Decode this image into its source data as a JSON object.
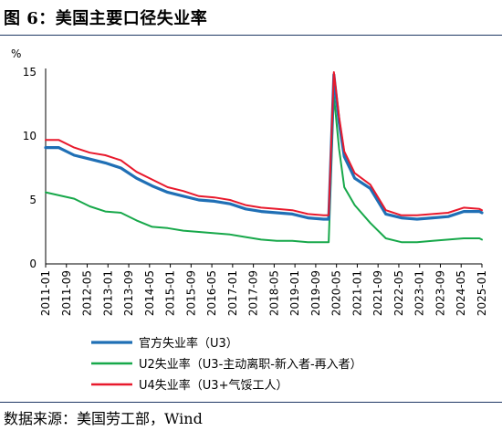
{
  "title": "图 6：美国主要口径失业率",
  "source": "数据来源：美国劳工部，Wind",
  "chart_data": {
    "type": "line",
    "ylabel": "%",
    "ylim": [
      0,
      15
    ],
    "yticks": [
      0,
      5,
      10,
      15
    ],
    "grid": false,
    "legend_position": "bottom",
    "xticks": [
      "2011-01",
      "2011-09",
      "2012-05",
      "2013-01",
      "2013-09",
      "2014-05",
      "2015-01",
      "2015-09",
      "2016-05",
      "2017-01",
      "2017-09",
      "2018-05",
      "2019-01",
      "2019-09",
      "2020-05",
      "2021-01",
      "2021-09",
      "2022-05",
      "2023-01",
      "2023-09",
      "2024-05",
      "2025-01"
    ],
    "xrange": [
      "2011-01",
      "2025-01"
    ],
    "series": [
      {
        "name": "官方失业率（U3）",
        "color": "#1f6fb5",
        "width": 3.2,
        "points": [
          [
            "2011-01",
            9.1
          ],
          [
            "2011-06",
            9.1
          ],
          [
            "2011-12",
            8.5
          ],
          [
            "2012-06",
            8.2
          ],
          [
            "2012-12",
            7.9
          ],
          [
            "2013-06",
            7.5
          ],
          [
            "2013-12",
            6.7
          ],
          [
            "2014-06",
            6.1
          ],
          [
            "2014-12",
            5.6
          ],
          [
            "2015-06",
            5.3
          ],
          [
            "2015-12",
            5.0
          ],
          [
            "2016-06",
            4.9
          ],
          [
            "2016-12",
            4.7
          ],
          [
            "2017-06",
            4.3
          ],
          [
            "2017-12",
            4.1
          ],
          [
            "2018-06",
            4.0
          ],
          [
            "2018-12",
            3.9
          ],
          [
            "2019-06",
            3.6
          ],
          [
            "2019-12",
            3.5
          ],
          [
            "2020-02",
            3.5
          ],
          [
            "2020-04",
            14.8
          ],
          [
            "2020-06",
            11.1
          ],
          [
            "2020-08",
            8.4
          ],
          [
            "2020-12",
            6.7
          ],
          [
            "2021-06",
            5.9
          ],
          [
            "2021-12",
            3.9
          ],
          [
            "2022-06",
            3.6
          ],
          [
            "2022-12",
            3.5
          ],
          [
            "2023-06",
            3.6
          ],
          [
            "2023-12",
            3.7
          ],
          [
            "2024-06",
            4.1
          ],
          [
            "2024-12",
            4.1
          ],
          [
            "2025-01",
            4.0
          ]
        ]
      },
      {
        "name": "U2失业率（U3-主动离职-新入者-再入者）",
        "color": "#17a84a",
        "width": 2,
        "points": [
          [
            "2011-01",
            5.6
          ],
          [
            "2011-12",
            5.1
          ],
          [
            "2012-06",
            4.5
          ],
          [
            "2012-12",
            4.1
          ],
          [
            "2013-06",
            4.0
          ],
          [
            "2013-12",
            3.4
          ],
          [
            "2014-06",
            2.9
          ],
          [
            "2014-12",
            2.8
          ],
          [
            "2015-06",
            2.6
          ],
          [
            "2015-12",
            2.5
          ],
          [
            "2016-06",
            2.4
          ],
          [
            "2016-12",
            2.3
          ],
          [
            "2017-06",
            2.1
          ],
          [
            "2017-12",
            1.9
          ],
          [
            "2018-06",
            1.8
          ],
          [
            "2018-12",
            1.8
          ],
          [
            "2019-06",
            1.7
          ],
          [
            "2019-12",
            1.7
          ],
          [
            "2020-02",
            1.7
          ],
          [
            "2020-04",
            13.2
          ],
          [
            "2020-06",
            9.0
          ],
          [
            "2020-08",
            6.0
          ],
          [
            "2020-12",
            4.6
          ],
          [
            "2021-06",
            3.2
          ],
          [
            "2021-12",
            2.0
          ],
          [
            "2022-06",
            1.7
          ],
          [
            "2022-12",
            1.7
          ],
          [
            "2023-06",
            1.8
          ],
          [
            "2023-12",
            1.9
          ],
          [
            "2024-06",
            2.0
          ],
          [
            "2024-12",
            2.0
          ],
          [
            "2025-01",
            1.9
          ]
        ]
      },
      {
        "name": "U4失业率（U3+气馁工人）",
        "color": "#e8192c",
        "width": 2,
        "points": [
          [
            "2011-01",
            9.7
          ],
          [
            "2011-06",
            9.7
          ],
          [
            "2011-12",
            9.1
          ],
          [
            "2012-06",
            8.7
          ],
          [
            "2012-12",
            8.5
          ],
          [
            "2013-06",
            8.1
          ],
          [
            "2013-12",
            7.2
          ],
          [
            "2014-06",
            6.6
          ],
          [
            "2014-12",
            6.0
          ],
          [
            "2015-06",
            5.7
          ],
          [
            "2015-12",
            5.3
          ],
          [
            "2016-06",
            5.2
          ],
          [
            "2016-12",
            5.0
          ],
          [
            "2017-06",
            4.6
          ],
          [
            "2017-12",
            4.4
          ],
          [
            "2018-06",
            4.3
          ],
          [
            "2018-12",
            4.2
          ],
          [
            "2019-06",
            3.9
          ],
          [
            "2019-12",
            3.8
          ],
          [
            "2020-02",
            3.8
          ],
          [
            "2020-04",
            15.0
          ],
          [
            "2020-06",
            11.5
          ],
          [
            "2020-08",
            8.8
          ],
          [
            "2020-12",
            7.1
          ],
          [
            "2021-06",
            6.2
          ],
          [
            "2021-12",
            4.2
          ],
          [
            "2022-06",
            3.8
          ],
          [
            "2022-12",
            3.8
          ],
          [
            "2023-06",
            3.9
          ],
          [
            "2023-12",
            4.0
          ],
          [
            "2024-06",
            4.4
          ],
          [
            "2024-12",
            4.3
          ],
          [
            "2025-01",
            4.2
          ]
        ]
      }
    ]
  }
}
